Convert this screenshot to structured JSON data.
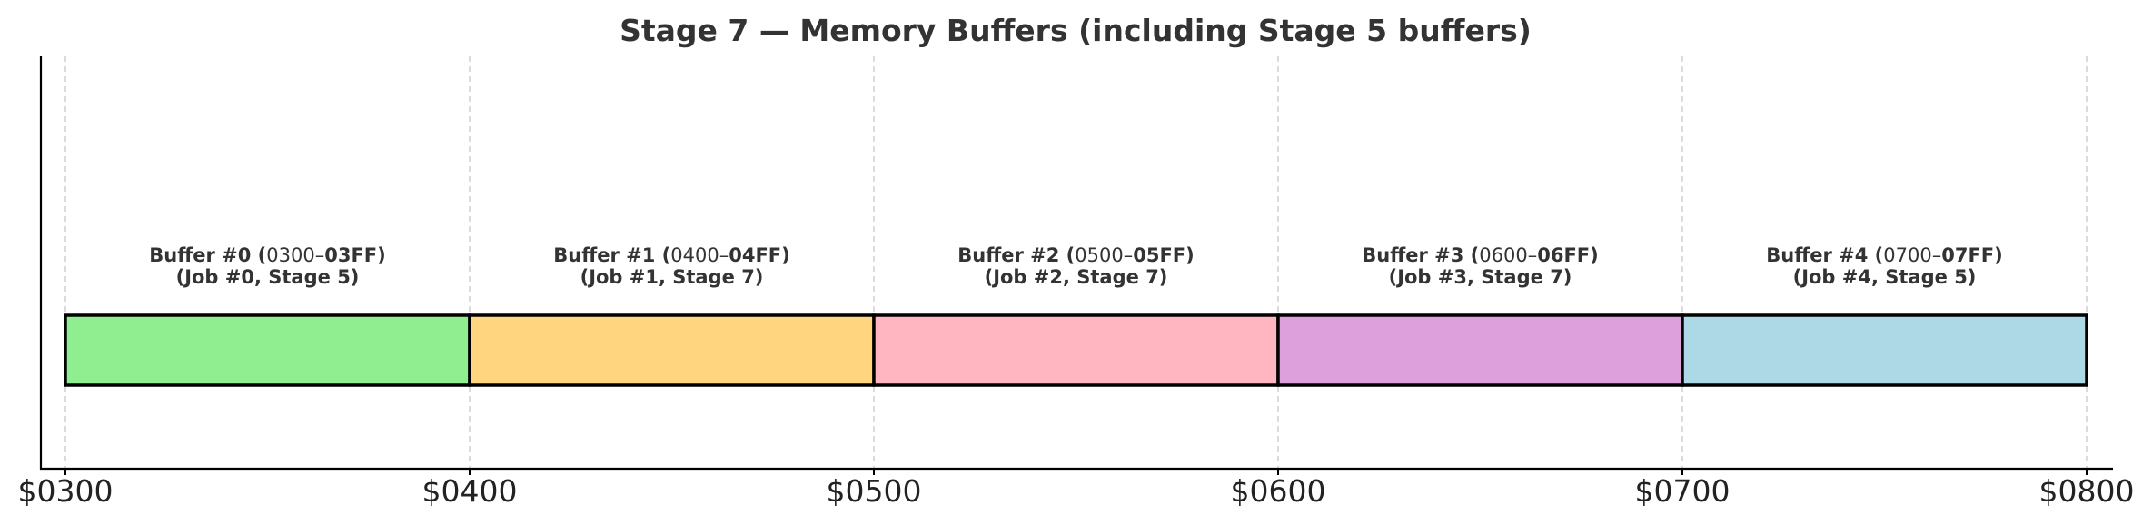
{
  "chart_data": {
    "type": "bar",
    "orientation": "horizontal-span",
    "title": "Stage 7 — Memory Buffers (including Stage 5 buffers)",
    "xlabel": "",
    "ylabel": "",
    "x_axis": {
      "range": [
        768,
        2048
      ],
      "tick_values": [
        768,
        1024,
        1280,
        1536,
        1792,
        2048
      ],
      "tick_labels": [
        "$0300",
        "$0400",
        "$0500",
        "$0600",
        "$0700",
        "$0800"
      ]
    },
    "grid": {
      "vertical": true,
      "style": "dashed"
    },
    "buffers": [
      {
        "name": "Buffer #0",
        "range_start_text": "0300",
        "range_end_text": "03FF",
        "job_line": "(Job #0, Stage 5)",
        "start": 768,
        "end": 1024,
        "color": "#90EE90"
      },
      {
        "name": "Buffer #1",
        "range_start_text": "0400",
        "range_end_text": "04FF",
        "job_line": "(Job #1, Stage 7)",
        "start": 1024,
        "end": 1280,
        "color": "#FFD580"
      },
      {
        "name": "Buffer #2",
        "range_start_text": "0500",
        "range_end_text": "05FF",
        "job_line": "(Job #2, Stage 7)",
        "start": 1280,
        "end": 1536,
        "color": "#FFB6C1"
      },
      {
        "name": "Buffer #3",
        "range_start_text": "0600",
        "range_end_text": "06FF",
        "job_line": "(Job #3, Stage 7)",
        "start": 1536,
        "end": 1792,
        "color": "#DDA0DD"
      },
      {
        "name": "Buffer #4",
        "range_start_text": "0700",
        "range_end_text": "07FF",
        "job_line": "(Job #4, Stage 5)",
        "start": 1792,
        "end": 2048,
        "color": "#ADD8E6"
      }
    ]
  }
}
